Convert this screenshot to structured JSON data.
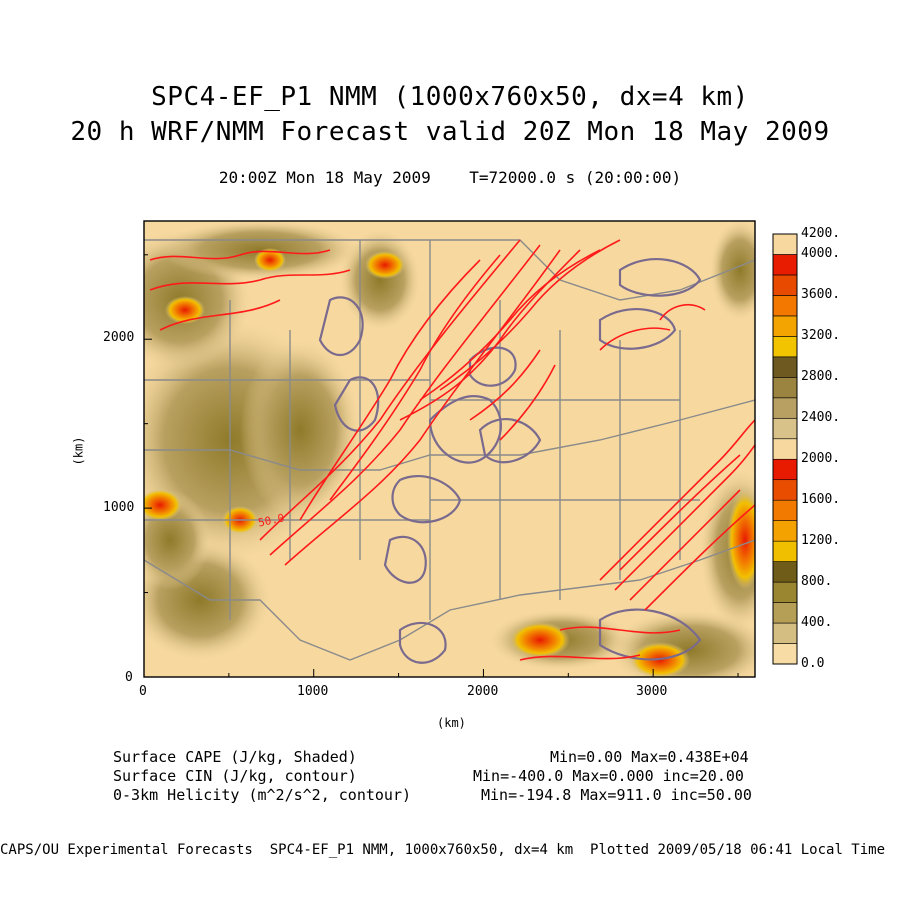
{
  "header": {
    "title_line1": "SPC4-EF_P1 NMM (1000x760x50, dx=4 km)",
    "title_line2": "20 h WRF/NMM Forecast valid 20Z Mon 18 May 2009",
    "time_info": "20:00Z Mon 18 May 2009    T=72000.0 s (20:00:00)"
  },
  "colors": {
    "bg_tan": "#f7d9a0",
    "red_contour": "#ff1a1a",
    "purple_contour": "#7a6a8e",
    "border_gray": "#8a8a8a"
  },
  "chart_data": {
    "type": "heatmap",
    "title": "",
    "xlabel": "(km)",
    "ylabel": "(km)",
    "xlim": [
      0,
      3600
    ],
    "ylim": [
      0,
      2700
    ],
    "x_ticks": [
      "0",
      "1000",
      "2000",
      "3000"
    ],
    "y_ticks": [
      "0",
      "1000",
      "2000"
    ],
    "grid": false,
    "contour_labels": [
      "50.0"
    ],
    "colorbar": {
      "labels": [
        "0.0",
        "400.",
        "800.",
        "1200.",
        "1600.",
        "2000.",
        "2400.",
        "2800.",
        "3200.",
        "3600.",
        "4000.",
        "4200."
      ],
      "levels": [
        0,
        200,
        400,
        600,
        800,
        1000,
        1200,
        1400,
        1600,
        1800,
        2000,
        2200,
        2400,
        2600,
        2800,
        3000,
        3200,
        3400,
        3600,
        3800,
        4000,
        4200
      ],
      "colors": [
        "#f7dca6",
        "#d4be82",
        "#b59f56",
        "#9a8630",
        "#6e5c18",
        "#f0c000",
        "#f4a200",
        "#f27a00",
        "#e84d00",
        "#e81a00",
        "#f7d9a0",
        "#d9c28a",
        "#b8a062",
        "#9a8440",
        "#6e5a20",
        "#f2c400",
        "#f4a400",
        "#f27800",
        "#e84a00",
        "#e81c00",
        "#f7d9a0",
        "#d1b66a"
      ]
    }
  },
  "legend": {
    "field1_name": "Surface CAPE (J/kg, Shaded)",
    "field1_stats": "Min=0.00 Max=0.438E+04",
    "field2_name": "Surface CIN (J/kg, contour)",
    "field2_stats": "Min=-400.0 Max=0.000 inc=20.00",
    "field3_name": "0-3km Helicity (m^2/s^2, contour)",
    "field3_stats": "Min=-194.8 Max=911.0 inc=50.00"
  },
  "footer": {
    "text": "CAPS/OU Experimental Forecasts  SPC4-EF_P1 NMM, 1000x760x50, dx=4 km  Plotted 2009/05/18 06:41 Local Time"
  }
}
